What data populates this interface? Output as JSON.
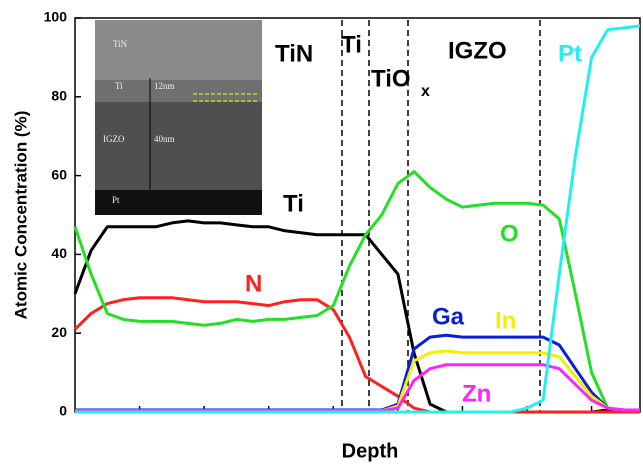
{
  "chart_data": {
    "type": "line",
    "x_label": "Depth",
    "y_label": "Atomic Concentration (%)",
    "ylim": [
      0,
      100
    ],
    "yticks": [
      0,
      20,
      40,
      60,
      80,
      100
    ],
    "categories": [
      null,
      null,
      null,
      null,
      null,
      null,
      null,
      null,
      null,
      null,
      null,
      null,
      null,
      null,
      null,
      null,
      null,
      null,
      null,
      null,
      null,
      null,
      null,
      null,
      null,
      null,
      null,
      null,
      null,
      null,
      null,
      null,
      null,
      null,
      null,
      null
    ],
    "annotations": [
      "TiN",
      "Ti",
      "TiO",
      "x",
      "IGZO"
    ],
    "inset_labels": [
      "TiN",
      "Ti",
      "12nm",
      "IGZO",
      "40nm",
      "Pt"
    ],
    "series": [
      {
        "name": "Ti",
        "color": "#000000",
        "values": [
          30,
          41,
          47,
          47,
          47,
          47,
          48,
          48.5,
          48,
          48,
          47.5,
          47,
          47,
          46,
          45.5,
          45,
          45,
          45,
          45,
          40,
          35,
          15,
          2,
          0,
          0,
          0,
          0,
          0,
          0,
          0,
          0,
          0,
          0,
          0.5,
          0.5,
          0.5
        ]
      },
      {
        "name": "N",
        "color": "#ff2020",
        "values": [
          21,
          25,
          27.5,
          28.5,
          29,
          29,
          29,
          28.5,
          28,
          28,
          28,
          27.5,
          27,
          28,
          28.5,
          28.5,
          26,
          19,
          9,
          6.5,
          4,
          1,
          0,
          0,
          0,
          0,
          0,
          0,
          0,
          0,
          0,
          0,
          0,
          0,
          0,
          0
        ]
      },
      {
        "name": "O",
        "color": "#22e022",
        "values": [
          47,
          35,
          25,
          23.5,
          23,
          23,
          23,
          22.5,
          22,
          22.5,
          23.5,
          23,
          23.5,
          23.5,
          24,
          24.5,
          27,
          37,
          45,
          50,
          58,
          61,
          57,
          54,
          52,
          52.5,
          53,
          53,
          53,
          52.5,
          49,
          30,
          10,
          1,
          0.5,
          0.5
        ]
      },
      {
        "name": "Ga",
        "color": "#0a1fd8",
        "values": [
          0.5,
          0.5,
          0.5,
          0.5,
          0.5,
          0.5,
          0.5,
          0.5,
          0.5,
          0.5,
          0.5,
          0.5,
          0.5,
          0.5,
          0.5,
          0.5,
          0.5,
          0.5,
          0.5,
          0.5,
          2,
          16,
          19,
          19.5,
          19,
          19,
          19,
          19,
          19,
          19,
          17,
          11,
          5,
          1,
          0.5,
          0.5
        ]
      },
      {
        "name": "In",
        "color": "#f2f000",
        "values": [
          0.3,
          0.3,
          0.3,
          0.3,
          0.3,
          0.3,
          0.3,
          0.3,
          0.3,
          0.3,
          0.3,
          0.3,
          0.3,
          0.3,
          0.3,
          0.3,
          0.3,
          0.3,
          0.3,
          0.3,
          1.5,
          13,
          15,
          15.5,
          15,
          15,
          15,
          15,
          15,
          15,
          14,
          9,
          4,
          1,
          0.5,
          0.5
        ]
      },
      {
        "name": "Zn",
        "color": "#ff22ff",
        "values": [
          0.3,
          0.3,
          0.3,
          0.3,
          0.3,
          0.3,
          0.3,
          0.3,
          0.3,
          0.3,
          0.3,
          0.3,
          0.3,
          0.3,
          0.3,
          0.3,
          0.3,
          0.3,
          0.3,
          0.3,
          1,
          8,
          11,
          12,
          12,
          12,
          12,
          12,
          12,
          12,
          11,
          7,
          3,
          1,
          0.5,
          0.5
        ]
      },
      {
        "name": "Pt",
        "color": "#22f0f0",
        "values": [
          0,
          0,
          0,
          0,
          0,
          0,
          0,
          0,
          0,
          0,
          0,
          0,
          0,
          0,
          0,
          0,
          0,
          0,
          0,
          0,
          0,
          0,
          0,
          0,
          0,
          0,
          0,
          0,
          1,
          3,
          35,
          65,
          90,
          97,
          97.5,
          98
        ]
      }
    ]
  }
}
